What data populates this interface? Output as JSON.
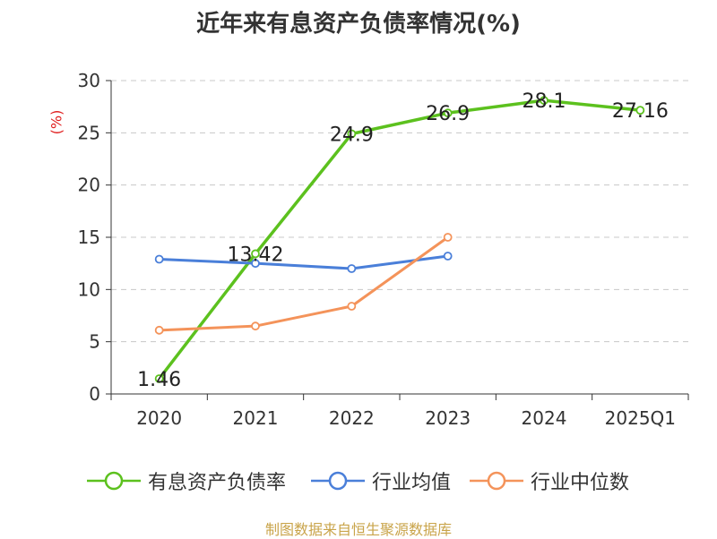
{
  "title": "近年来有息资产负债率情况(%)",
  "source": "制图数据来自恒生聚源数据库",
  "chart_data": {
    "type": "line",
    "categories": [
      "2020",
      "2021",
      "2022",
      "2023",
      "2024",
      "2025Q1"
    ],
    "ylabel": "(%)",
    "ylim": [
      0,
      30
    ],
    "yticks": [
      0,
      5,
      10,
      15,
      20,
      25,
      30
    ],
    "grid": true,
    "legend_position": "bottom",
    "series": [
      {
        "name": "有息资产负债率",
        "color": "#5cc11e",
        "values": [
          1.46,
          13.42,
          24.9,
          26.9,
          28.1,
          27.16
        ],
        "labels": [
          "1.46",
          "13.42",
          "24.9",
          "26.9",
          "28.1",
          "27.16"
        ]
      },
      {
        "name": "行业均值",
        "color": "#4a7fd9",
        "values": [
          12.9,
          12.5,
          12.0,
          13.2,
          null,
          null
        ]
      },
      {
        "name": "行业中位数",
        "color": "#f4935a",
        "values": [
          6.1,
          6.5,
          8.4,
          15.0,
          null,
          null
        ]
      }
    ]
  }
}
